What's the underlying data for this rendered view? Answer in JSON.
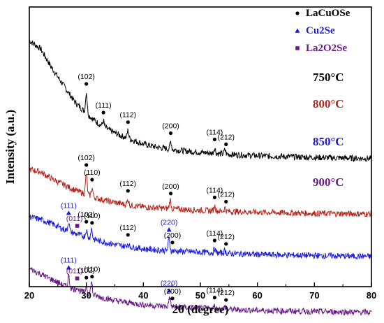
{
  "chart_data": {
    "type": "line",
    "xlabel": "2θ (degree)",
    "ylabel": "Intensity (a.u.)",
    "xlim": [
      20,
      80
    ],
    "xticks": [
      "20",
      "30",
      "40",
      "50",
      "60",
      "70",
      "80"
    ],
    "grid": false,
    "legend_position": "top-right",
    "legend": [
      {
        "label": "LaCuOSe",
        "marker": "circle",
        "color": "#000000"
      },
      {
        "label": "Cu2Se",
        "marker": "triangle",
        "color": "#1a1adc"
      },
      {
        "label": "La2O2Se",
        "marker": "square",
        "color": "#6a1b8a"
      }
    ],
    "series": [
      {
        "name": "750°C",
        "color": "#000000",
        "base": [
          [
            20,
            0.88
          ],
          [
            22,
            0.85
          ],
          [
            24,
            0.78
          ],
          [
            26,
            0.72
          ],
          [
            28,
            0.66
          ],
          [
            30,
            0.62
          ],
          [
            32,
            0.585
          ],
          [
            34,
            0.56
          ],
          [
            36,
            0.54
          ],
          [
            38,
            0.525
          ],
          [
            40,
            0.51
          ],
          [
            42,
            0.5
          ],
          [
            45,
            0.49
          ],
          [
            50,
            0.48
          ],
          [
            55,
            0.473
          ],
          [
            60,
            0.468
          ],
          [
            65,
            0.465
          ],
          [
            70,
            0.462
          ],
          [
            75,
            0.46
          ],
          [
            80,
            0.458
          ]
        ],
        "peaks": [
          [
            30.0,
            0.075
          ],
          [
            33.0,
            0.02
          ],
          [
            37.3,
            0.028
          ],
          [
            44.8,
            0.028
          ],
          [
            52.5,
            0.02
          ],
          [
            54.3,
            0.015
          ]
        ],
        "annotations": [
          {
            "x": 30.0,
            "text": "(102)",
            "marker": "circle"
          },
          {
            "x": 33.0,
            "text": "(111)",
            "marker": "circle"
          },
          {
            "x": 37.3,
            "text": "(112)",
            "marker": "circle"
          },
          {
            "x": 44.8,
            "text": "(200)",
            "marker": "circle"
          },
          {
            "x": 52.5,
            "text": "(114)",
            "marker": "circle"
          },
          {
            "x": 54.5,
            "text": "(212)",
            "marker": "circle"
          }
        ]
      },
      {
        "name": "800°C",
        "color": "#b5281e",
        "base": [
          [
            20,
            0.62
          ],
          [
            22,
            0.61
          ],
          [
            24,
            0.585
          ],
          [
            26,
            0.565
          ],
          [
            28,
            0.545
          ],
          [
            30,
            0.53
          ],
          [
            32,
            0.515
          ],
          [
            34,
            0.505
          ],
          [
            36,
            0.497
          ],
          [
            38,
            0.49
          ],
          [
            40,
            0.485
          ],
          [
            45,
            0.478
          ],
          [
            50,
            0.473
          ],
          [
            55,
            0.469
          ],
          [
            60,
            0.466
          ],
          [
            70,
            0.462
          ],
          [
            80,
            0.46
          ]
        ],
        "peaks": [
          [
            30.0,
            0.075
          ],
          [
            31.0,
            0.03
          ],
          [
            37.3,
            0.02
          ],
          [
            44.7,
            0.032
          ],
          [
            52.5,
            0.018
          ],
          [
            54.3,
            0.012
          ]
        ],
        "annotations": [
          {
            "x": 30.0,
            "text": "(102)",
            "marker": "circle"
          },
          {
            "x": 31.0,
            "text": "(110)",
            "marker": "circle"
          },
          {
            "x": 37.3,
            "text": "(112)",
            "marker": "circle"
          },
          {
            "x": 44.8,
            "text": "(200)",
            "marker": "circle"
          },
          {
            "x": 52.5,
            "text": "(114)",
            "marker": "circle"
          },
          {
            "x": 54.5,
            "text": "(212)",
            "marker": "circle"
          }
        ]
      },
      {
        "name": "850°C",
        "color": "#1a1adc",
        "base": [
          [
            20,
            0.605
          ],
          [
            22,
            0.595
          ],
          [
            24,
            0.58
          ],
          [
            26,
            0.56
          ],
          [
            28,
            0.545
          ],
          [
            30,
            0.532
          ],
          [
            32,
            0.52
          ],
          [
            34,
            0.51
          ],
          [
            36,
            0.502
          ],
          [
            38,
            0.496
          ],
          [
            40,
            0.49
          ],
          [
            45,
            0.483
          ],
          [
            50,
            0.478
          ],
          [
            55,
            0.474
          ],
          [
            60,
            0.47
          ],
          [
            70,
            0.466
          ],
          [
            80,
            0.463
          ]
        ],
        "peaks": [
          [
            26.9,
            0.035
          ],
          [
            30.0,
            0.025
          ],
          [
            30.9,
            0.035
          ],
          [
            37.3,
            0.012
          ],
          [
            44.5,
            0.045
          ],
          [
            52.5,
            0.014
          ],
          [
            54.3,
            0.01
          ]
        ],
        "annotations": [
          {
            "x": 26.9,
            "text": "(111)",
            "marker": "triangle"
          },
          {
            "x": 28.4,
            "text": "(011)",
            "marker": "square"
          },
          {
            "x": 30.0,
            "text": "(102)",
            "marker": "circle"
          },
          {
            "x": 31.0,
            "text": "(110)",
            "marker": "circle"
          },
          {
            "x": 37.3,
            "text": "(112)",
            "marker": "circle"
          },
          {
            "x": 44.5,
            "text": "(220)",
            "marker": "triangle"
          },
          {
            "x": 45.1,
            "text": "(200)",
            "marker": "circle"
          },
          {
            "x": 52.5,
            "text": "(114)",
            "marker": "circle"
          },
          {
            "x": 54.5,
            "text": "(212)",
            "marker": "circle"
          }
        ]
      },
      {
        "name": "900°C",
        "color": "#6a1b8a",
        "base": [
          [
            20,
            0.62
          ],
          [
            22,
            0.6
          ],
          [
            24,
            0.58
          ],
          [
            26,
            0.56
          ],
          [
            28,
            0.545
          ],
          [
            30,
            0.532
          ],
          [
            32,
            0.52
          ],
          [
            34,
            0.51
          ],
          [
            36,
            0.502
          ],
          [
            38,
            0.496
          ],
          [
            40,
            0.49
          ],
          [
            45,
            0.483
          ],
          [
            50,
            0.478
          ],
          [
            55,
            0.474
          ],
          [
            60,
            0.47
          ],
          [
            70,
            0.466
          ],
          [
            80,
            0.463
          ]
        ],
        "peaks": [
          [
            26.9,
            0.04
          ],
          [
            28.4,
            0.012
          ],
          [
            30.0,
            0.025
          ],
          [
            30.9,
            0.045
          ],
          [
            44.6,
            0.035
          ],
          [
            52.5,
            0.01
          ],
          [
            54.3,
            0.008
          ]
        ],
        "annotations": [
          {
            "x": 26.9,
            "text": "(111)",
            "marker": "triangle"
          },
          {
            "x": 28.4,
            "text": "(011)",
            "marker": "square"
          },
          {
            "x": 30.0,
            "text": "(102)",
            "marker": "circle"
          },
          {
            "x": 31.0,
            "text": "(110)",
            "marker": "circle"
          },
          {
            "x": 44.5,
            "text": "(220)",
            "marker": "triangle"
          },
          {
            "x": 45.1,
            "text": "(200)",
            "marker": "circle"
          },
          {
            "x": 52.5,
            "text": "(114)",
            "marker": "circle"
          },
          {
            "x": 54.5,
            "text": "(212)",
            "marker": "circle"
          }
        ]
      }
    ]
  }
}
